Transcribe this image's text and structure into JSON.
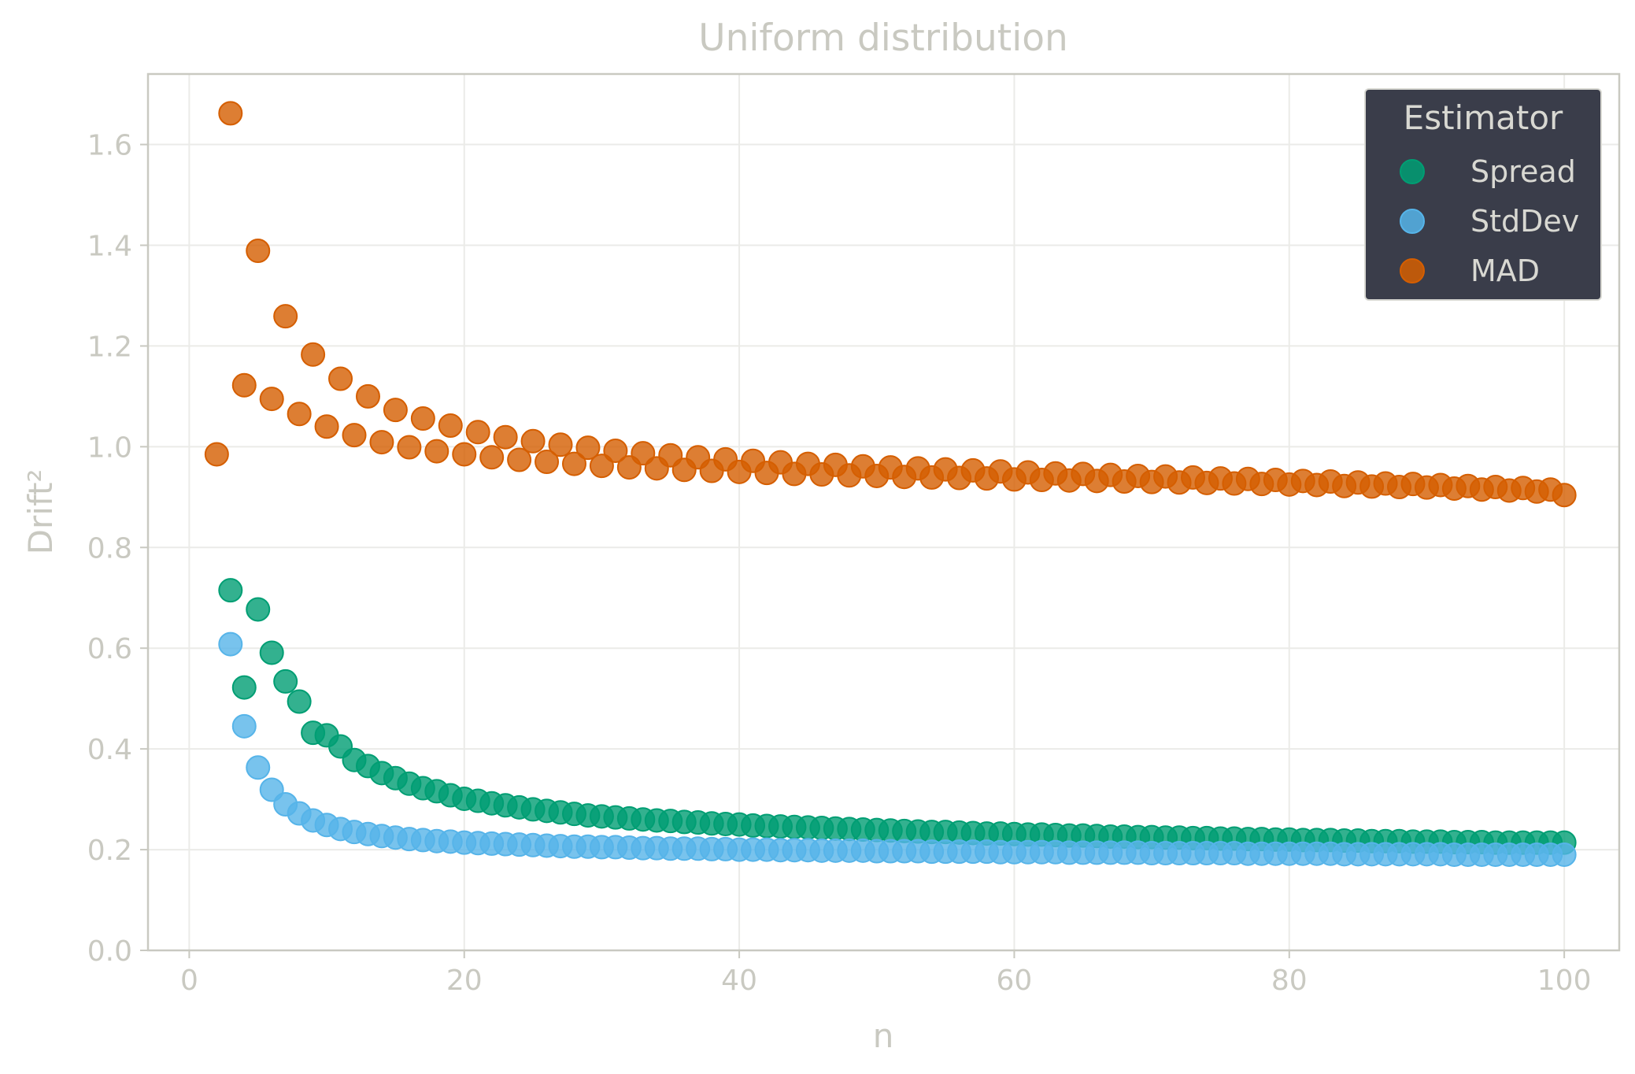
{
  "chart_data": {
    "type": "scatter",
    "title": "Uniform distribution",
    "xlabel": "n",
    "ylabel": "Drift²",
    "xlim": [
      -3,
      104
    ],
    "ylim": [
      0.0,
      1.74
    ],
    "xticks": [
      0,
      20,
      40,
      60,
      80,
      100
    ],
    "yticks": [
      0.0,
      0.2,
      0.4,
      0.6,
      0.8,
      1.0,
      1.2,
      1.4,
      1.6
    ],
    "grid": true,
    "legend": {
      "title": "Estimator",
      "position": "top-right"
    },
    "series": [
      {
        "name": "Spread",
        "color": "#009e73",
        "x": [
          3,
          4,
          5,
          6,
          7,
          8,
          9,
          10,
          11,
          12,
          13,
          14,
          15,
          16,
          17,
          18,
          19,
          20,
          21,
          22,
          23,
          24,
          25,
          26,
          27,
          28,
          29,
          30,
          31,
          32,
          33,
          34,
          35,
          36,
          37,
          38,
          39,
          40,
          41,
          42,
          43,
          44,
          45,
          46,
          47,
          48,
          49,
          50,
          51,
          52,
          53,
          54,
          55,
          56,
          57,
          58,
          59,
          60,
          61,
          62,
          63,
          64,
          65,
          66,
          67,
          68,
          69,
          70,
          71,
          72,
          73,
          74,
          75,
          76,
          77,
          78,
          79,
          80,
          81,
          82,
          83,
          84,
          85,
          86,
          87,
          88,
          89,
          90,
          91,
          92,
          93,
          94,
          95,
          96,
          97,
          98,
          99,
          100
        ],
        "y": [
          0.715,
          0.522,
          0.677,
          0.591,
          0.534,
          0.494,
          0.432,
          0.427,
          0.405,
          0.378,
          0.366,
          0.352,
          0.342,
          0.331,
          0.322,
          0.316,
          0.308,
          0.301,
          0.297,
          0.292,
          0.288,
          0.284,
          0.28,
          0.277,
          0.274,
          0.271,
          0.268,
          0.266,
          0.264,
          0.262,
          0.26,
          0.258,
          0.257,
          0.255,
          0.254,
          0.252,
          0.251,
          0.25,
          0.248,
          0.247,
          0.246,
          0.245,
          0.244,
          0.243,
          0.242,
          0.241,
          0.24,
          0.239,
          0.238,
          0.237,
          0.236,
          0.235,
          0.235,
          0.234,
          0.233,
          0.232,
          0.232,
          0.231,
          0.23,
          0.23,
          0.229,
          0.228,
          0.228,
          0.227,
          0.226,
          0.226,
          0.225,
          0.225,
          0.224,
          0.224,
          0.223,
          0.223,
          0.222,
          0.222,
          0.221,
          0.221,
          0.22,
          0.22,
          0.219,
          0.219,
          0.219,
          0.218,
          0.218,
          0.217,
          0.217,
          0.217,
          0.216,
          0.216,
          0.216,
          0.215,
          0.215,
          0.215,
          0.214,
          0.214,
          0.214,
          0.214,
          0.214,
          0.214
        ]
      },
      {
        "name": "StdDev",
        "color": "#56b4e9",
        "x": [
          3,
          4,
          5,
          6,
          7,
          8,
          9,
          10,
          11,
          12,
          13,
          14,
          15,
          16,
          17,
          18,
          19,
          20,
          21,
          22,
          23,
          24,
          25,
          26,
          27,
          28,
          29,
          30,
          31,
          32,
          33,
          34,
          35,
          36,
          37,
          38,
          39,
          40,
          41,
          42,
          43,
          44,
          45,
          46,
          47,
          48,
          49,
          50,
          51,
          52,
          53,
          54,
          55,
          56,
          57,
          58,
          59,
          60,
          61,
          62,
          63,
          64,
          65,
          66,
          67,
          68,
          69,
          70,
          71,
          72,
          73,
          74,
          75,
          76,
          77,
          78,
          79,
          80,
          81,
          82,
          83,
          84,
          85,
          86,
          87,
          88,
          89,
          90,
          91,
          92,
          93,
          94,
          95,
          96,
          97,
          98,
          99,
          100
        ],
        "y": [
          0.608,
          0.445,
          0.363,
          0.319,
          0.29,
          0.272,
          0.258,
          0.249,
          0.241,
          0.235,
          0.231,
          0.227,
          0.224,
          0.221,
          0.219,
          0.217,
          0.216,
          0.214,
          0.213,
          0.212,
          0.211,
          0.21,
          0.209,
          0.208,
          0.207,
          0.206,
          0.206,
          0.205,
          0.205,
          0.204,
          0.203,
          0.203,
          0.202,
          0.202,
          0.202,
          0.201,
          0.201,
          0.2,
          0.2,
          0.2,
          0.199,
          0.199,
          0.199,
          0.198,
          0.198,
          0.198,
          0.198,
          0.197,
          0.197,
          0.197,
          0.197,
          0.196,
          0.196,
          0.196,
          0.196,
          0.196,
          0.195,
          0.195,
          0.195,
          0.195,
          0.195,
          0.194,
          0.194,
          0.194,
          0.194,
          0.194,
          0.194,
          0.193,
          0.193,
          0.193,
          0.193,
          0.193,
          0.193,
          0.193,
          0.192,
          0.192,
          0.192,
          0.192,
          0.192,
          0.192,
          0.192,
          0.191,
          0.191,
          0.191,
          0.191,
          0.191,
          0.191,
          0.191,
          0.191,
          0.19,
          0.19,
          0.19,
          0.19,
          0.19,
          0.19,
          0.19,
          0.19,
          0.19
        ]
      },
      {
        "name": "MAD",
        "color": "#d55e00",
        "x": [
          2,
          3,
          4,
          5,
          6,
          7,
          8,
          9,
          10,
          11,
          12,
          13,
          14,
          15,
          16,
          17,
          18,
          19,
          20,
          21,
          22,
          23,
          24,
          25,
          26,
          27,
          28,
          29,
          30,
          31,
          32,
          33,
          34,
          35,
          36,
          37,
          38,
          39,
          40,
          41,
          42,
          43,
          44,
          45,
          46,
          47,
          48,
          49,
          50,
          51,
          52,
          53,
          54,
          55,
          56,
          57,
          58,
          59,
          60,
          61,
          62,
          63,
          64,
          65,
          66,
          67,
          68,
          69,
          70,
          71,
          72,
          73,
          74,
          75,
          76,
          77,
          78,
          79,
          80,
          81,
          82,
          83,
          84,
          85,
          86,
          87,
          88,
          89,
          90,
          91,
          92,
          93,
          94,
          95,
          96,
          97,
          98,
          99,
          100
        ],
        "y": [
          0.985,
          1.662,
          1.122,
          1.389,
          1.095,
          1.259,
          1.065,
          1.183,
          1.04,
          1.135,
          1.023,
          1.1,
          1.009,
          1.073,
          0.999,
          1.056,
          0.991,
          1.042,
          0.985,
          1.029,
          0.979,
          1.019,
          0.974,
          1.011,
          0.97,
          1.004,
          0.966,
          0.998,
          0.962,
          0.992,
          0.959,
          0.987,
          0.957,
          0.983,
          0.954,
          0.979,
          0.952,
          0.975,
          0.95,
          0.972,
          0.948,
          0.969,
          0.946,
          0.966,
          0.945,
          0.964,
          0.943,
          0.961,
          0.942,
          0.959,
          0.94,
          0.957,
          0.939,
          0.955,
          0.938,
          0.953,
          0.937,
          0.951,
          0.935,
          0.949,
          0.934,
          0.947,
          0.933,
          0.946,
          0.932,
          0.944,
          0.931,
          0.942,
          0.93,
          0.941,
          0.929,
          0.939,
          0.928,
          0.937,
          0.927,
          0.936,
          0.926,
          0.934,
          0.925,
          0.932,
          0.924,
          0.931,
          0.922,
          0.929,
          0.921,
          0.927,
          0.92,
          0.926,
          0.919,
          0.924,
          0.917,
          0.922,
          0.915,
          0.92,
          0.913,
          0.918,
          0.911,
          0.915,
          0.904
        ]
      }
    ]
  }
}
